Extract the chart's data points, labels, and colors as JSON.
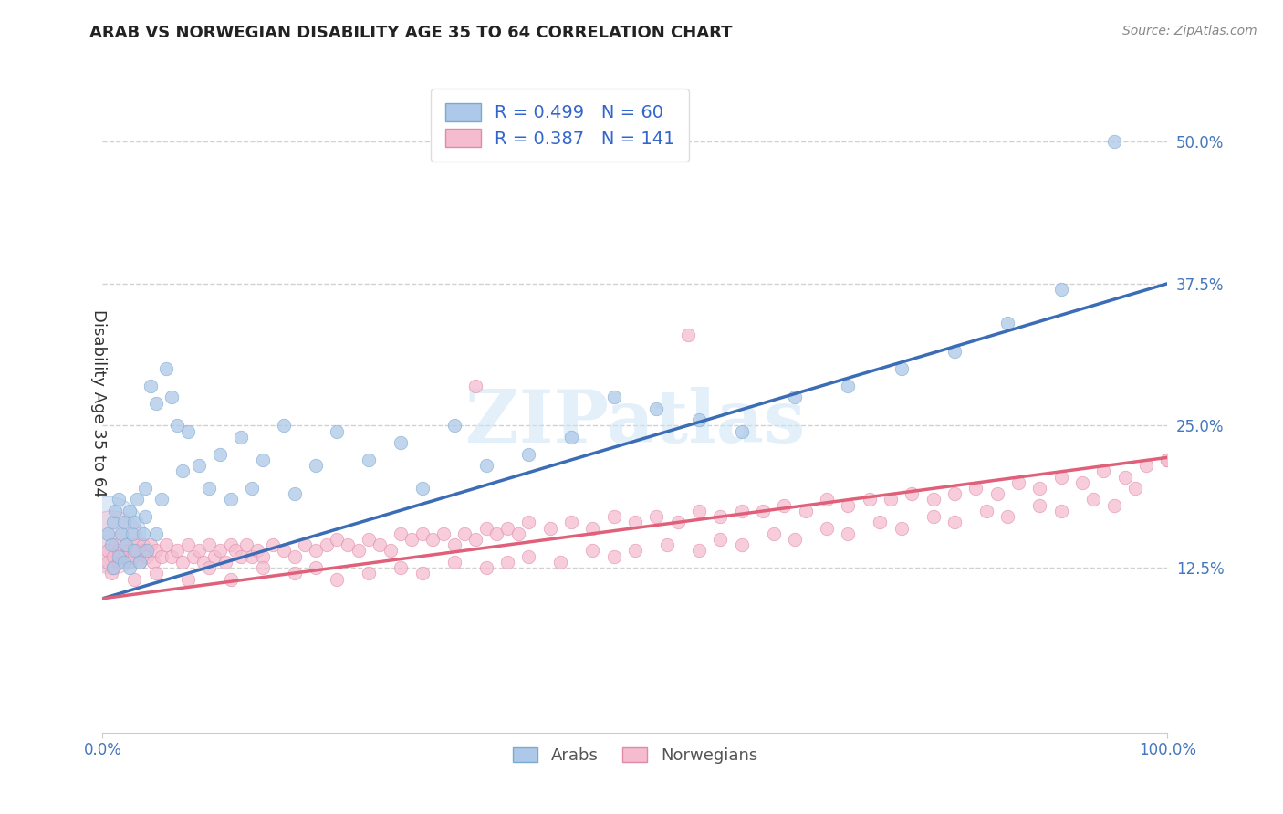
{
  "title": "ARAB VS NORWEGIAN DISABILITY AGE 35 TO 64 CORRELATION CHART",
  "source_text": "Source: ZipAtlas.com",
  "ylabel": "Disability Age 35 to 64",
  "xlim": [
    0.0,
    1.0
  ],
  "ylim": [
    -0.02,
    0.56
  ],
  "x_ticks": [
    0.0,
    1.0
  ],
  "x_tick_labels": [
    "0.0%",
    "100.0%"
  ],
  "y_ticks": [
    0.125,
    0.25,
    0.375,
    0.5
  ],
  "y_tick_labels": [
    "12.5%",
    "25.0%",
    "37.5%",
    "50.0%"
  ],
  "arab_color": "#adc8e8",
  "arab_edge_color": "#7aaad0",
  "arab_line_color": "#3a6db5",
  "norwegian_color": "#f5bcd0",
  "norwegian_edge_color": "#e08aaa",
  "norwegian_line_color": "#e0607a",
  "arab_R": 0.499,
  "arab_N": 60,
  "norwegian_R": 0.387,
  "norwegian_N": 141,
  "watermark": "ZIPatlas",
  "legend_color": "#3366cc",
  "arab_line_x0": 0.0,
  "arab_line_y0": 0.098,
  "arab_line_x1": 1.0,
  "arab_line_y1": 0.375,
  "norw_line_x0": 0.0,
  "norw_line_y0": 0.098,
  "norw_line_x1": 1.0,
  "norw_line_y1": 0.222,
  "arab_pts_x": [
    0.005,
    0.008,
    0.01,
    0.01,
    0.012,
    0.015,
    0.015,
    0.018,
    0.02,
    0.02,
    0.022,
    0.025,
    0.025,
    0.028,
    0.03,
    0.03,
    0.032,
    0.035,
    0.038,
    0.04,
    0.04,
    0.042,
    0.045,
    0.05,
    0.05,
    0.055,
    0.06,
    0.065,
    0.07,
    0.075,
    0.08,
    0.09,
    0.1,
    0.11,
    0.12,
    0.13,
    0.14,
    0.15,
    0.17,
    0.18,
    0.2,
    0.22,
    0.25,
    0.28,
    0.3,
    0.33,
    0.36,
    0.4,
    0.44,
    0.48,
    0.52,
    0.56,
    0.6,
    0.65,
    0.7,
    0.75,
    0.8,
    0.85,
    0.9,
    0.95
  ],
  "arab_pts_y": [
    0.155,
    0.145,
    0.165,
    0.125,
    0.175,
    0.135,
    0.185,
    0.155,
    0.13,
    0.165,
    0.145,
    0.175,
    0.125,
    0.155,
    0.165,
    0.14,
    0.185,
    0.13,
    0.155,
    0.17,
    0.195,
    0.14,
    0.285,
    0.27,
    0.155,
    0.185,
    0.3,
    0.275,
    0.25,
    0.21,
    0.245,
    0.215,
    0.195,
    0.225,
    0.185,
    0.24,
    0.195,
    0.22,
    0.25,
    0.19,
    0.215,
    0.245,
    0.22,
    0.235,
    0.195,
    0.25,
    0.215,
    0.225,
    0.24,
    0.275,
    0.265,
    0.255,
    0.245,
    0.275,
    0.285,
    0.3,
    0.315,
    0.34,
    0.37,
    0.5
  ],
  "arab_sizes_large": [
    3000,
    0,
    0,
    0,
    0,
    0,
    0,
    0,
    0,
    0,
    0,
    0,
    0,
    0,
    0,
    0,
    0,
    0,
    0,
    0,
    0,
    0,
    0,
    0,
    0,
    0,
    0,
    0,
    0,
    0,
    0,
    0,
    0,
    0,
    0,
    0,
    0,
    0,
    0,
    0,
    0,
    0,
    0,
    0,
    0,
    0,
    0,
    0,
    0,
    0,
    0,
    0,
    0,
    0,
    0,
    0,
    0,
    0,
    0,
    0
  ],
  "norw_pts_x": [
    0.005,
    0.005,
    0.008,
    0.01,
    0.01,
    0.012,
    0.015,
    0.015,
    0.018,
    0.02,
    0.02,
    0.022,
    0.025,
    0.025,
    0.028,
    0.03,
    0.03,
    0.032,
    0.035,
    0.038,
    0.04,
    0.042,
    0.045,
    0.048,
    0.05,
    0.055,
    0.06,
    0.065,
    0.07,
    0.075,
    0.08,
    0.085,
    0.09,
    0.095,
    0.1,
    0.105,
    0.11,
    0.115,
    0.12,
    0.125,
    0.13,
    0.135,
    0.14,
    0.145,
    0.15,
    0.16,
    0.17,
    0.18,
    0.19,
    0.2,
    0.21,
    0.22,
    0.23,
    0.24,
    0.25,
    0.26,
    0.27,
    0.28,
    0.29,
    0.3,
    0.31,
    0.32,
    0.33,
    0.34,
    0.35,
    0.36,
    0.37,
    0.38,
    0.39,
    0.4,
    0.42,
    0.44,
    0.46,
    0.48,
    0.5,
    0.52,
    0.54,
    0.56,
    0.58,
    0.6,
    0.62,
    0.64,
    0.66,
    0.68,
    0.7,
    0.72,
    0.74,
    0.76,
    0.78,
    0.8,
    0.82,
    0.84,
    0.86,
    0.88,
    0.9,
    0.92,
    0.94,
    0.96,
    0.98,
    1.0,
    0.03,
    0.05,
    0.08,
    0.1,
    0.12,
    0.15,
    0.18,
    0.2,
    0.22,
    0.25,
    0.28,
    0.3,
    0.33,
    0.36,
    0.38,
    0.4,
    0.43,
    0.46,
    0.48,
    0.5,
    0.53,
    0.56,
    0.58,
    0.6,
    0.63,
    0.65,
    0.68,
    0.7,
    0.73,
    0.75,
    0.78,
    0.8,
    0.83,
    0.85,
    0.88,
    0.9,
    0.93,
    0.95,
    0.97,
    1.0,
    0.35,
    0.55
  ],
  "norw_pts_y": [
    0.14,
    0.13,
    0.12,
    0.135,
    0.125,
    0.145,
    0.13,
    0.14,
    0.13,
    0.14,
    0.135,
    0.145,
    0.13,
    0.14,
    0.135,
    0.145,
    0.135,
    0.14,
    0.13,
    0.145,
    0.14,
    0.135,
    0.145,
    0.13,
    0.14,
    0.135,
    0.145,
    0.135,
    0.14,
    0.13,
    0.145,
    0.135,
    0.14,
    0.13,
    0.145,
    0.135,
    0.14,
    0.13,
    0.145,
    0.14,
    0.135,
    0.145,
    0.135,
    0.14,
    0.135,
    0.145,
    0.14,
    0.135,
    0.145,
    0.14,
    0.145,
    0.15,
    0.145,
    0.14,
    0.15,
    0.145,
    0.14,
    0.155,
    0.15,
    0.155,
    0.15,
    0.155,
    0.145,
    0.155,
    0.15,
    0.16,
    0.155,
    0.16,
    0.155,
    0.165,
    0.16,
    0.165,
    0.16,
    0.17,
    0.165,
    0.17,
    0.165,
    0.175,
    0.17,
    0.175,
    0.175,
    0.18,
    0.175,
    0.185,
    0.18,
    0.185,
    0.185,
    0.19,
    0.185,
    0.19,
    0.195,
    0.19,
    0.2,
    0.195,
    0.205,
    0.2,
    0.21,
    0.205,
    0.215,
    0.22,
    0.115,
    0.12,
    0.115,
    0.125,
    0.115,
    0.125,
    0.12,
    0.125,
    0.115,
    0.12,
    0.125,
    0.12,
    0.13,
    0.125,
    0.13,
    0.135,
    0.13,
    0.14,
    0.135,
    0.14,
    0.145,
    0.14,
    0.15,
    0.145,
    0.155,
    0.15,
    0.16,
    0.155,
    0.165,
    0.16,
    0.17,
    0.165,
    0.175,
    0.17,
    0.18,
    0.175,
    0.185,
    0.18,
    0.195,
    0.22,
    0.285,
    0.33
  ]
}
